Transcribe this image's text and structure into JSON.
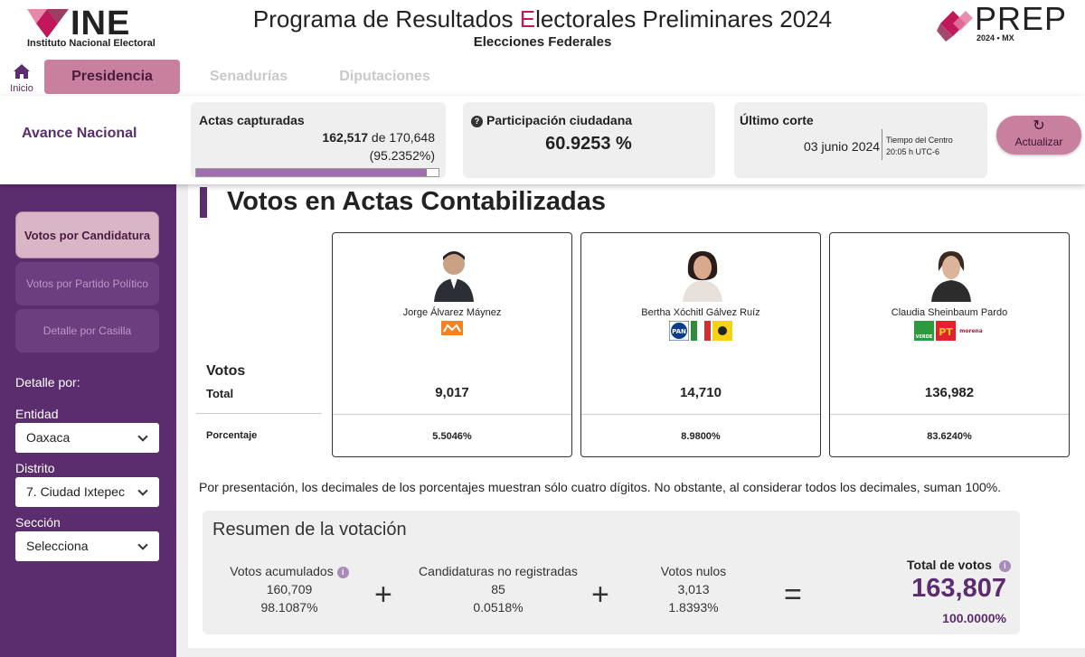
{
  "header": {
    "org_name": "INE",
    "org_full": "Instituto Nacional Electoral",
    "title_pre": "Programa de Resultados ",
    "title_E": "E",
    "title_post": "lectorales Preliminares 2024",
    "subtitle": "Elecciones Federales",
    "prep_word": "PREP",
    "prep_year": "2024 • MX"
  },
  "nav": {
    "home_label": "Inicio",
    "tabs": [
      {
        "label": "Presidencia"
      },
      {
        "label": "Senadurías"
      },
      {
        "label": "Diputaciones"
      }
    ]
  },
  "avance": {
    "title": "Avance Nacional",
    "actas_label": "Actas capturadas",
    "actas_captured": "162,517",
    "actas_of": "de 170,648",
    "actas_pct": "(95.2352%)",
    "actas_progress": 0.952352,
    "participacion_label": "Participación ciudadana",
    "participacion_value": "60.9253 %",
    "corte_label": "Último corte",
    "corte_date": "03 junio 2024",
    "corte_tz_line1": "Tiempo del Centro",
    "corte_tz_line2": "20:05 h UTC-6",
    "refresh_label": "Actualizar"
  },
  "sidebar": {
    "btn_candidatura": "Votos por Candidatura",
    "btn_partido": "Votos por Partido Político",
    "btn_casilla": "Detalle por Casilla",
    "detalle_label": "Detalle por:",
    "entidad_label": "Entidad",
    "entidad_value": "Oaxaca",
    "distrito_label": "Distrito",
    "distrito_value": "7. Ciudad Ixtepec",
    "seccion_label": "Sección",
    "seccion_value": "Selecciona"
  },
  "main": {
    "section_title": "Votos en Actas Contabilizadas",
    "row_votos": "Votos",
    "row_total": "Total",
    "row_pct": "Porcentaje",
    "candidates": [
      {
        "name": "Jorge Álvarez Máynez",
        "total": "9,017",
        "pct": "5.5046%"
      },
      {
        "name": "Bertha Xóchitl Gálvez Ruíz",
        "total": "14,710",
        "pct": "8.9800%"
      },
      {
        "name": "Claudia Sheinbaum Pardo",
        "total": "136,982",
        "pct": "83.6240%"
      }
    ],
    "note": "Por presentación, los decimales de los porcentajes muestran sólo cuatro dígitos. No obstante, al considerar todos los decimales, suman 100%."
  },
  "summary": {
    "title": "Resumen de la votación",
    "acumulados_label": "Votos acumulados",
    "acumulados_value": "160,709",
    "acumulados_pct": "98.1087%",
    "noreg_label": "Candidaturas no registradas",
    "noreg_value": "85",
    "noreg_pct": "0.0518%",
    "nulos_label": "Votos nulos",
    "nulos_value": "3,013",
    "nulos_pct": "1.8393%",
    "total_label": "Total de votos",
    "total_value": "163,807",
    "total_pct": "100.0000%",
    "op_plus": "+",
    "op_eq": "="
  },
  "party_labels": {
    "pan": "PAN",
    "pt": "PT",
    "verde": "VERDE",
    "morena": "morena"
  },
  "colors": {
    "brand_purple": "#5b2d6e",
    "accent_pink": "#c9809f",
    "ine_magenta": "#c2185b"
  }
}
